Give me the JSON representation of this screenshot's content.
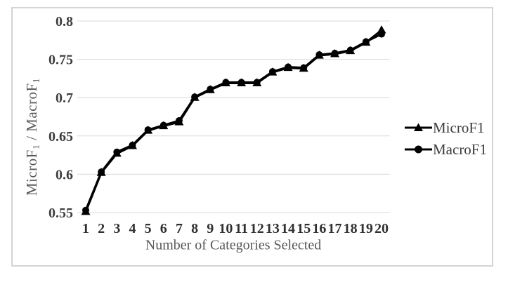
{
  "chart_data": {
    "type": "line",
    "title": "",
    "xlabel": "Number of Categories Selected",
    "ylabel": "MicroF1 / MacroF1",
    "ylabel_parts": [
      {
        "text": "MicroF",
        "sub": false
      },
      {
        "text": "1",
        "sub": true
      },
      {
        "text": " / MacroF",
        "sub": false
      },
      {
        "text": "1",
        "sub": true
      }
    ],
    "categories": [
      "1",
      "2",
      "3",
      "4",
      "5",
      "6",
      "7",
      "8",
      "9",
      "10",
      "11",
      "12",
      "13",
      "14",
      "15",
      "16",
      "17",
      "18",
      "19",
      "20"
    ],
    "y_ticks": [
      0.8,
      0.75,
      0.7,
      0.65,
      0.6,
      0.55
    ],
    "y_tick_labels": [
      "0.8",
      "0.75",
      "0.7",
      "0.65",
      "0.6",
      "0.55"
    ],
    "ylim": [
      0.55,
      0.8
    ],
    "grid": "horizontal",
    "legend_position": "right",
    "series": [
      {
        "name": "MicroF1",
        "marker": "triangle",
        "color": "#000000",
        "values": [
          0.551,
          0.602,
          0.627,
          0.637,
          0.657,
          0.663,
          0.668,
          0.7,
          0.71,
          0.719,
          0.719,
          0.719,
          0.733,
          0.739,
          0.738,
          0.755,
          0.757,
          0.761,
          0.772,
          0.788
        ]
      },
      {
        "name": "MacroF1",
        "marker": "circle",
        "color": "#000000",
        "values": [
          0.553,
          0.603,
          0.629,
          0.638,
          0.658,
          0.664,
          0.67,
          0.701,
          0.711,
          0.72,
          0.72,
          0.72,
          0.734,
          0.74,
          0.739,
          0.756,
          0.758,
          0.762,
          0.773,
          0.783
        ]
      }
    ]
  },
  "legend": {
    "items": [
      {
        "label": "MicroF1",
        "marker_icon": "triangle-marker-icon"
      },
      {
        "label": "MacroF1",
        "marker_icon": "circle-marker-icon"
      }
    ]
  },
  "colors": {
    "line": "#000000",
    "grid": "#d9d9d9",
    "y_tick_label": "#3f3f3f",
    "x_tick_label": "#303030",
    "axis_title": "#595959",
    "legend_text": "#3d3d3d",
    "figure_border": "#d4d4d4",
    "background": "#ffffff"
  }
}
